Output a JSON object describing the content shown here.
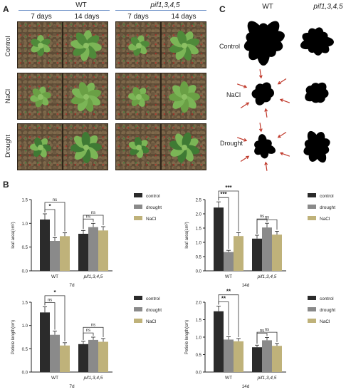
{
  "panel_a": {
    "letter": "A",
    "genotypes": [
      "WT",
      "pif1,3,4,5"
    ],
    "days": [
      "7 days",
      "14 days",
      "7 days",
      "14 days"
    ],
    "rows": [
      "Control",
      "NaCl",
      "Drought"
    ]
  },
  "panel_c": {
    "letter": "C",
    "genotypes": [
      "WT",
      "pif1,3,4,5"
    ],
    "rows": [
      "Control",
      "NaCl",
      "Drought"
    ]
  },
  "panel_b": {
    "letter": "B"
  },
  "colors": {
    "control": "#2b2b2b",
    "drought": "#8a8a8a",
    "nacl": "#bfb27a",
    "bracket": "#333333",
    "arrow": "#c0392b"
  },
  "chart_data": [
    {
      "type": "bar",
      "ylabel": "leaf area(cm²)",
      "xlabel": "7d",
      "categories": [
        "WT",
        "pif1,3,4,5"
      ],
      "yticks": [
        "0.0",
        "0.5",
        "1.0",
        "1.5"
      ],
      "ylim": [
        0,
        1.5
      ],
      "series": [
        {
          "name": "control",
          "values": [
            1.08,
            0.78
          ],
          "errors": [
            0.12,
            0.07
          ]
        },
        {
          "name": "drought",
          "values": [
            0.63,
            0.92
          ],
          "errors": [
            0.07,
            0.08
          ]
        },
        {
          "name": "NaCl",
          "values": [
            0.73,
            0.85
          ],
          "errors": [
            0.07,
            0.08
          ]
        }
      ],
      "annotations": [
        {
          "group": 0,
          "from": 0,
          "to": 1,
          "label": "*"
        },
        {
          "group": 0,
          "from": 0,
          "to": 2,
          "label": "ns"
        },
        {
          "group": 1,
          "from": 0,
          "to": 1,
          "label": "ns"
        },
        {
          "group": 1,
          "from": 0,
          "to": 2,
          "label": "ns"
        }
      ]
    },
    {
      "type": "bar",
      "ylabel": "leaf area(cm²)",
      "xlabel": "14d",
      "categories": [
        "WT",
        "pif1,3,4,5"
      ],
      "yticks": [
        "0.0",
        "0.5",
        "1.0",
        "1.5",
        "2.0",
        "2.5"
      ],
      "ylim": [
        0,
        2.5
      ],
      "series": [
        {
          "name": "control",
          "values": [
            2.22,
            1.13
          ],
          "errors": [
            0.2,
            0.12
          ]
        },
        {
          "name": "drought",
          "values": [
            0.66,
            1.52
          ],
          "errors": [
            0.06,
            0.15
          ]
        },
        {
          "name": "NaCl",
          "values": [
            1.22,
            1.27
          ],
          "errors": [
            0.12,
            0.12
          ]
        }
      ],
      "annotations": [
        {
          "group": 0,
          "from": 0,
          "to": 1,
          "label": "***"
        },
        {
          "group": 0,
          "from": 0,
          "to": 2,
          "label": "***"
        },
        {
          "group": 1,
          "from": 0,
          "to": 1,
          "label": "ns"
        },
        {
          "group": 1,
          "from": 0,
          "to": 2,
          "label": "ns"
        }
      ]
    },
    {
      "type": "bar",
      "ylabel": "Petiole length(cm)",
      "xlabel": "7d",
      "categories": [
        "WT",
        "pif1,3,4,5"
      ],
      "yticks": [
        "0.0",
        "0.5",
        "1.0",
        "1.5"
      ],
      "ylim": [
        0,
        1.5
      ],
      "series": [
        {
          "name": "control",
          "values": [
            1.28,
            0.6
          ],
          "errors": [
            0.12,
            0.06
          ]
        },
        {
          "name": "drought",
          "values": [
            0.8,
            0.69
          ],
          "errors": [
            0.08,
            0.06
          ]
        },
        {
          "name": "NaCl",
          "values": [
            0.57,
            0.65
          ],
          "errors": [
            0.06,
            0.07
          ]
        }
      ],
      "annotations": [
        {
          "group": 0,
          "from": 0,
          "to": 1,
          "label": "ns"
        },
        {
          "group": 0,
          "from": 0,
          "to": 2,
          "label": "*"
        },
        {
          "group": 1,
          "from": 0,
          "to": 1,
          "label": "ns"
        },
        {
          "group": 1,
          "from": 0,
          "to": 2,
          "label": "ns"
        }
      ]
    },
    {
      "type": "bar",
      "ylabel": "Petiole length(cm)",
      "xlabel": "14d",
      "categories": [
        "WT",
        "pif1,3,4,5"
      ],
      "yticks": [
        "0.0",
        "0.5",
        "1.0",
        "1.5",
        "2.0"
      ],
      "ylim": [
        0,
        2.0
      ],
      "series": [
        {
          "name": "control",
          "values": [
            1.74,
            0.71
          ],
          "errors": [
            0.15,
            0.06
          ]
        },
        {
          "name": "drought",
          "values": [
            0.93,
            0.91
          ],
          "errors": [
            0.08,
            0.08
          ]
        },
        {
          "name": "NaCl",
          "values": [
            0.88,
            0.75
          ],
          "errors": [
            0.08,
            0.07
          ]
        }
      ],
      "annotations": [
        {
          "group": 0,
          "from": 0,
          "to": 1,
          "label": "**"
        },
        {
          "group": 0,
          "from": 0,
          "to": 2,
          "label": "**"
        },
        {
          "group": 1,
          "from": 0,
          "to": 1,
          "label": "ns"
        },
        {
          "group": 1,
          "from": 0,
          "to": 2,
          "label": "ns"
        }
      ]
    }
  ]
}
